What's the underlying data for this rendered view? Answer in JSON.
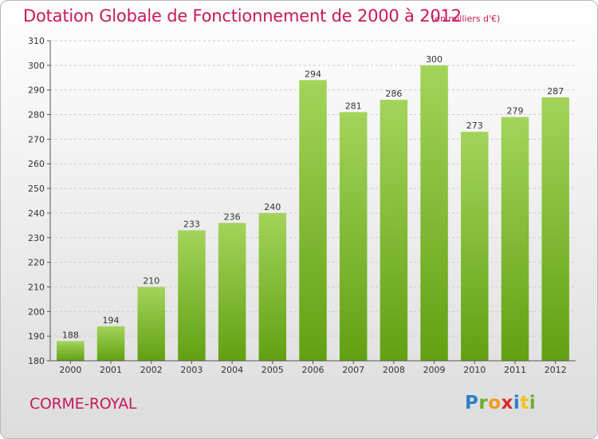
{
  "header": {
    "title": "Dotation Globale de Fonctionnement de 2000 à 2012",
    "subtitle": "(en milliers d'€)"
  },
  "footer": {
    "commune": "CORME-ROYAL",
    "logo_letters": [
      {
        "ch": "P",
        "color": "#2a7fc8"
      },
      {
        "ch": "r",
        "color": "#6dae2e"
      },
      {
        "ch": "o",
        "color": "#f29a1b"
      },
      {
        "ch": "x",
        "color": "#e0262b"
      },
      {
        "ch": "i",
        "color": "#2a7fc8"
      },
      {
        "ch": "t",
        "color": "#f2c11b"
      },
      {
        "ch": "i",
        "color": "#6dae2e"
      }
    ]
  },
  "chart_data": {
    "type": "bar",
    "title": "Dotation Globale de Fonctionnement de 2000 à 2012",
    "subtitle": "(en milliers d'€)",
    "xlabel": "",
    "ylabel": "",
    "categories": [
      "2000",
      "2001",
      "2002",
      "2003",
      "2004",
      "2005",
      "2006",
      "2007",
      "2008",
      "2009",
      "2010",
      "2011",
      "2012"
    ],
    "values": [
      188,
      194,
      210,
      233,
      236,
      240,
      294,
      281,
      286,
      300,
      273,
      279,
      287
    ],
    "ylim": [
      180,
      310
    ],
    "yticks": [
      180,
      190,
      200,
      210,
      220,
      230,
      240,
      250,
      260,
      270,
      280,
      290,
      300,
      310
    ],
    "grid": true,
    "colors": {
      "bar_light": "#a3d45a",
      "bar_dark": "#62a012",
      "grid": "#cccccc",
      "axis": "#555555"
    }
  }
}
